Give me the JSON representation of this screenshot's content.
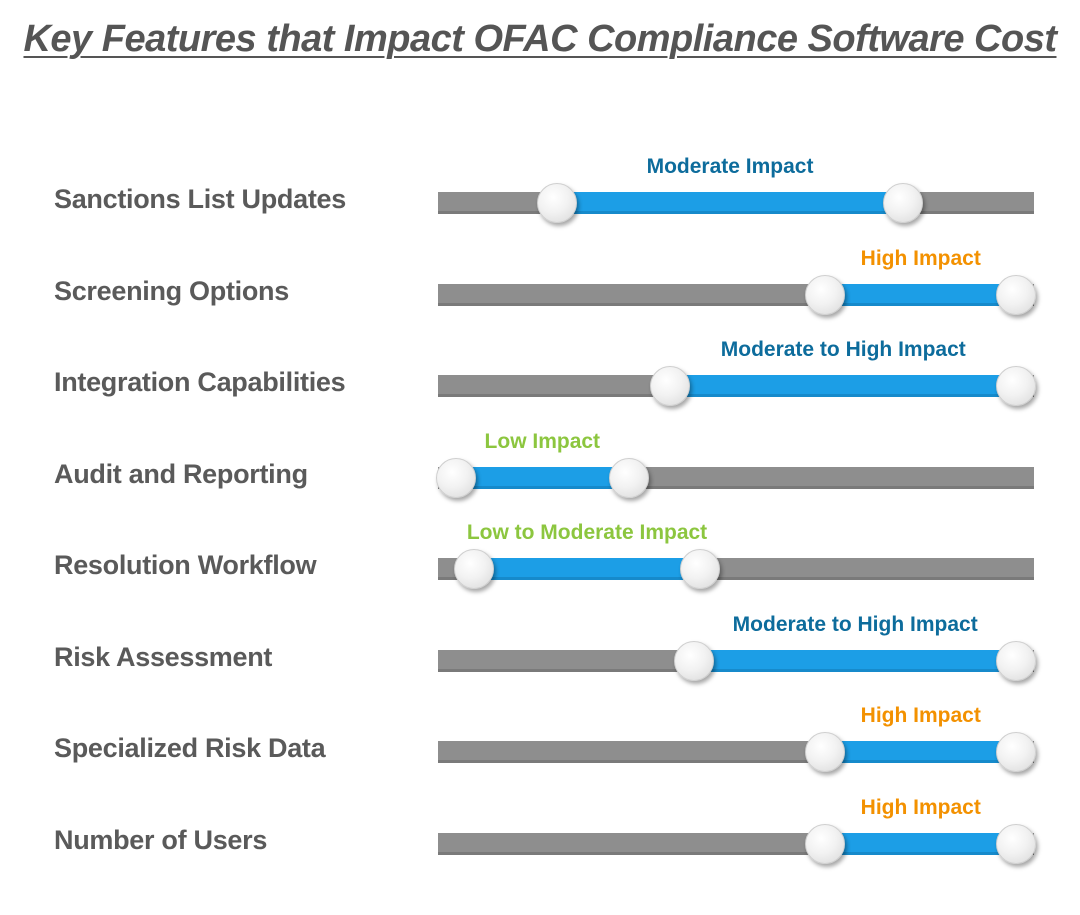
{
  "title": "Key Features that Impact OFAC Compliance Software Cost",
  "chart_data": {
    "type": "range-slider",
    "title": "Key Features that Impact OFAC Compliance Software Cost",
    "scale": [
      0,
      1
    ],
    "colors": {
      "track": "#8e8e8e",
      "fill": "#1c9ee6",
      "moderate": "#0d6c9c",
      "high": "#f39100",
      "low": "#8cc63f"
    },
    "rows": [
      {
        "feature": "Sanctions List Updates",
        "impact": "Moderate Impact",
        "range": [
          0.2,
          0.78
        ],
        "level": "moderate"
      },
      {
        "feature": "Screening Options",
        "impact": "High Impact",
        "range": [
          0.65,
          0.97
        ],
        "level": "high"
      },
      {
        "feature": "Integration Capabilities",
        "impact": "Moderate to High Impact",
        "range": [
          0.39,
          0.97
        ],
        "level": "moderate"
      },
      {
        "feature": "Audit and Reporting",
        "impact": "Low Impact",
        "range": [
          0.03,
          0.32
        ],
        "level": "low"
      },
      {
        "feature": "Resolution Workflow",
        "impact": "Low to Moderate Impact",
        "range": [
          0.06,
          0.44
        ],
        "level": "low"
      },
      {
        "feature": "Risk Assessment",
        "impact": "Moderate to High Impact",
        "range": [
          0.43,
          0.97
        ],
        "level": "moderate"
      },
      {
        "feature": "Specialized Risk Data",
        "impact": "High Impact",
        "range": [
          0.65,
          0.97
        ],
        "level": "high"
      },
      {
        "feature": "Number of Users",
        "impact": "High Impact",
        "range": [
          0.65,
          0.97
        ],
        "level": "high"
      }
    ]
  }
}
